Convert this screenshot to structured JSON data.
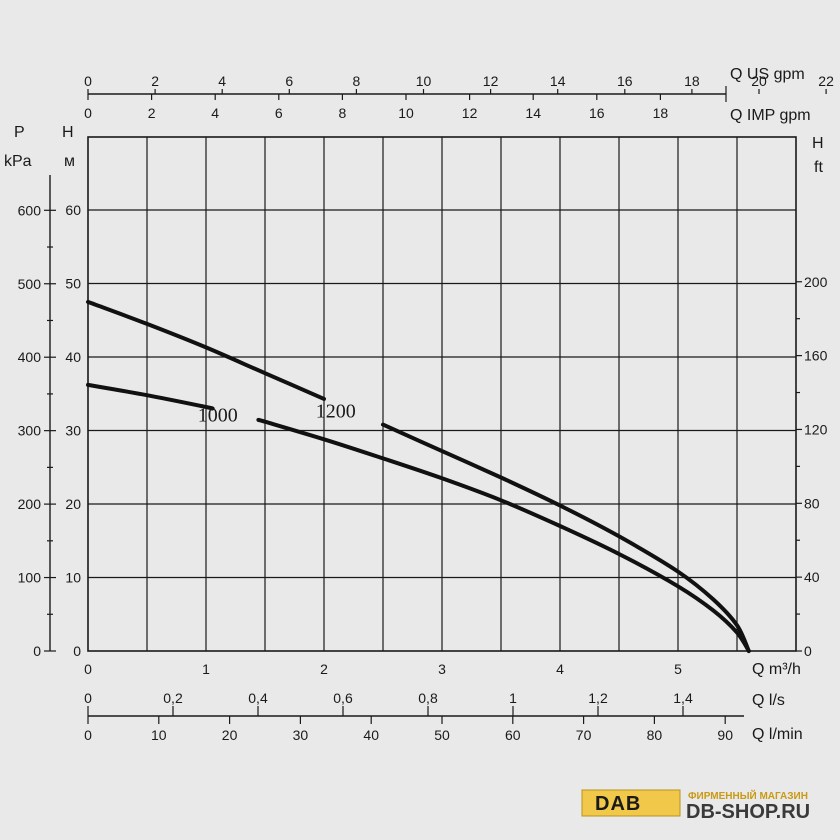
{
  "chart_data": {
    "type": "line",
    "title": "",
    "axes": {
      "q_us_gpm": {
        "label": "Q US gpm",
        "ticks": [
          "0",
          "2",
          "4",
          "6",
          "8",
          "10",
          "12",
          "14",
          "16",
          "18",
          "20",
          "22"
        ]
      },
      "q_imp_gpm": {
        "label": "Q IMP gpm",
        "ticks": [
          "0",
          "2",
          "4",
          "6",
          "8",
          "10",
          "12",
          "14",
          "16",
          "18"
        ]
      },
      "pressure": {
        "label_line1": "P",
        "label_line2": "kPa",
        "ticks": [
          "0",
          "100",
          "200",
          "300",
          "400",
          "500",
          "600"
        ]
      },
      "head_m": {
        "label_line1": "H",
        "label_line2": "м",
        "ticks": [
          "0",
          "10",
          "20",
          "30",
          "40",
          "50",
          "60"
        ]
      },
      "head_ft": {
        "label_line1": "H",
        "label_line2": "ft",
        "ticks": [
          "0",
          "40",
          "80",
          "120",
          "160",
          "200"
        ]
      },
      "q_m3h": {
        "label": "Q m³/h",
        "ticks": [
          "0",
          "1",
          "2",
          "3",
          "4",
          "5"
        ],
        "range": [
          0,
          6
        ]
      },
      "q_ls": {
        "label": "Q l/s",
        "ticks": [
          "0",
          "0,2",
          "0,4",
          "0,6",
          "0,8",
          "1",
          "1,2",
          "1,4"
        ]
      },
      "q_lmin": {
        "label": "Q l/min",
        "ticks": [
          "0",
          "10",
          "20",
          "30",
          "40",
          "50",
          "60",
          "70",
          "80",
          "90"
        ]
      }
    },
    "xlabel": "Q m³/h",
    "ylabel": "H м",
    "xlim": [
      0,
      6
    ],
    "ylim": [
      0,
      70
    ],
    "grid": true,
    "series": [
      {
        "name": "1200",
        "x": [
          0,
          0.5,
          1,
          1.5,
          2,
          2.5,
          3,
          3.5,
          4,
          4.5,
          5,
          5.3,
          5.5,
          5.6
        ],
        "y": [
          47.5,
          44.5,
          41.3,
          37.8,
          34.3,
          30.8,
          27.2,
          23.6,
          19.8,
          15.6,
          10.8,
          7.0,
          3.5,
          0
        ]
      },
      {
        "name": "1000",
        "x": [
          0,
          0.5,
          1,
          1.5,
          2,
          2.5,
          3,
          3.5,
          4,
          4.5,
          5,
          5.3,
          5.5,
          5.6
        ],
        "y": [
          36.2,
          34.8,
          33.2,
          31.2,
          28.8,
          26.2,
          23.5,
          20.5,
          17.0,
          13.2,
          8.8,
          5.5,
          2.5,
          0
        ]
      }
    ]
  },
  "branding": {
    "logo": "DAB",
    "store_caption": "ФИРМЕННЫЙ МАГАЗИН",
    "store_name": "DB-SHOP.RU"
  }
}
